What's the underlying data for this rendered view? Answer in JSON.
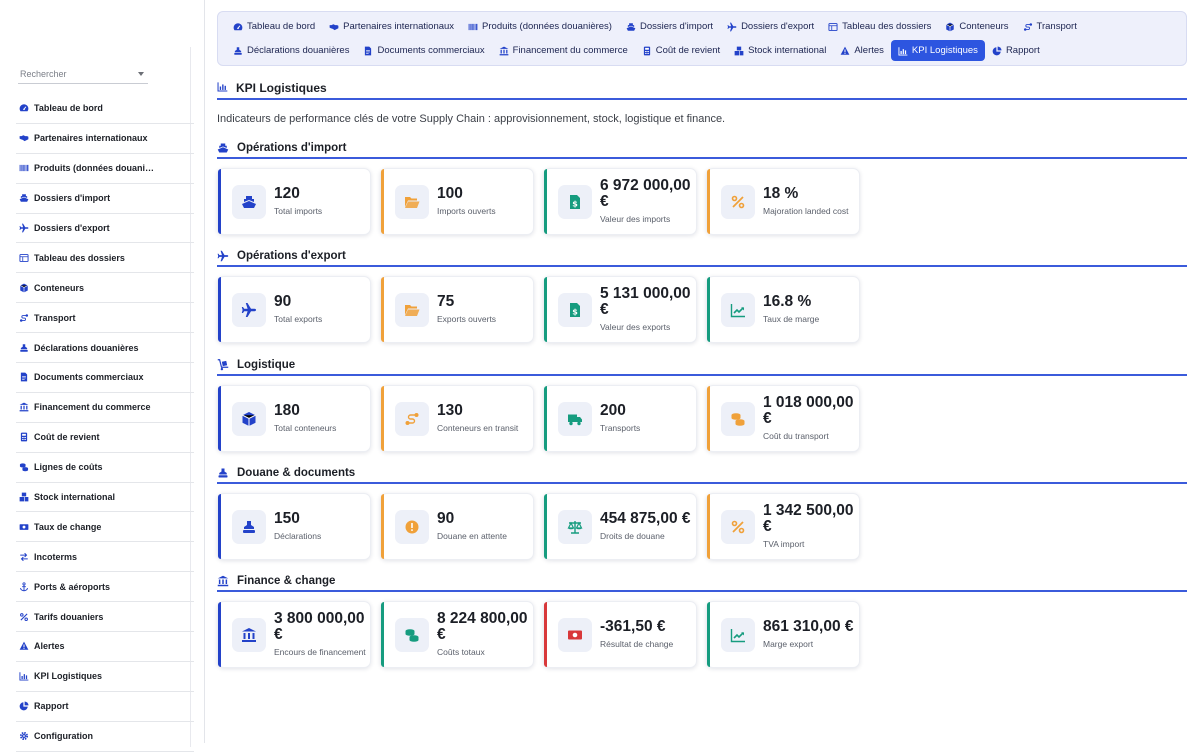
{
  "sidebar": {
    "search_placeholder": "Rechercher",
    "items": [
      {
        "label": "Tableau de bord",
        "icon": "dashboard-icon"
      },
      {
        "label": "Partenaires internationaux",
        "icon": "handshake-icon"
      },
      {
        "label": "Produits (données douani…",
        "icon": "barcode-icon"
      },
      {
        "label": "Dossiers d'import",
        "icon": "ship-icon"
      },
      {
        "label": "Dossiers d'export",
        "icon": "plane-icon"
      },
      {
        "label": "Tableau des dossiers",
        "icon": "table-icon"
      },
      {
        "label": "Conteneurs",
        "icon": "container-icon"
      },
      {
        "label": "Transport",
        "icon": "route-icon"
      },
      {
        "label": "Déclarations douanières",
        "icon": "stamp-icon"
      },
      {
        "label": "Documents commerciaux",
        "icon": "document-icon"
      },
      {
        "label": "Financement du commerce",
        "icon": "bank-icon"
      },
      {
        "label": "Coût de revient",
        "icon": "calculator-icon"
      },
      {
        "label": "Lignes de coûts",
        "icon": "coins-icon"
      },
      {
        "label": "Stock international",
        "icon": "boxes-icon"
      },
      {
        "label": "Taux de change",
        "icon": "money-icon"
      },
      {
        "label": "Incoterms",
        "icon": "exchange-icon"
      },
      {
        "label": "Ports & aéroports",
        "icon": "anchor-icon"
      },
      {
        "label": "Tarifs douaniers",
        "icon": "percent-icon"
      },
      {
        "label": "Alertes",
        "icon": "warning-icon"
      },
      {
        "label": "KPI Logistiques",
        "icon": "chart-icon"
      },
      {
        "label": "Rapport",
        "icon": "pie-icon"
      },
      {
        "label": "Configuration",
        "icon": "gear-icon"
      }
    ]
  },
  "topnav": {
    "row1": [
      {
        "label": "Tableau de bord",
        "icon": "dashboard-icon"
      },
      {
        "label": "Partenaires internationaux",
        "icon": "handshake-icon"
      },
      {
        "label": "Produits (données douanières)",
        "icon": "barcode-icon"
      },
      {
        "label": "Dossiers d'import",
        "icon": "ship-icon"
      },
      {
        "label": "Dossiers d'export",
        "icon": "plane-icon"
      },
      {
        "label": "Tableau des dossiers",
        "icon": "table-icon"
      },
      {
        "label": "Conteneurs",
        "icon": "container-icon"
      },
      {
        "label": "Transport",
        "icon": "route-icon"
      }
    ],
    "row2": [
      {
        "label": "Déclarations douanières",
        "icon": "stamp-icon"
      },
      {
        "label": "Documents commerciaux",
        "icon": "document-icon"
      },
      {
        "label": "Financement du commerce",
        "icon": "bank-icon"
      },
      {
        "label": "Coût de revient",
        "icon": "calculator-icon"
      },
      {
        "label": "Stock international",
        "icon": "boxes-icon"
      },
      {
        "label": "Alertes",
        "icon": "warning-icon"
      },
      {
        "label": "KPI Logistiques",
        "icon": "chart-icon",
        "active": true
      },
      {
        "label": "Rapport",
        "icon": "pie-icon"
      }
    ]
  },
  "page": {
    "title": "KPI Logistiques",
    "intro": "Indicateurs de performance clés de votre Supply Chain : approvisionnement, stock, logistique et finance."
  },
  "colors": {
    "blue": "#2342c9",
    "orange": "#f0a13a",
    "teal": "#169c7f",
    "red": "#d8383a",
    "accent": "#2d55e0"
  },
  "sections": [
    {
      "title": "Opérations d'import",
      "icon": "ship-icon",
      "cards": [
        {
          "value": "120",
          "label": "Total imports",
          "icon": "ship-icon",
          "color": "blue"
        },
        {
          "value": "100",
          "label": "Imports ouverts",
          "icon": "folder-open-icon",
          "color": "orange"
        },
        {
          "value": "6 972 000,00 €",
          "label": "Valeur des imports",
          "icon": "dollar-file-icon",
          "color": "teal"
        },
        {
          "value": "18 %",
          "label": "Majoration landed cost",
          "icon": "percent-icon",
          "color": "orange"
        }
      ]
    },
    {
      "title": "Opérations d'export",
      "icon": "plane-icon",
      "cards": [
        {
          "value": "90",
          "label": "Total exports",
          "icon": "plane-icon",
          "color": "blue"
        },
        {
          "value": "75",
          "label": "Exports ouverts",
          "icon": "folder-open-icon",
          "color": "orange"
        },
        {
          "value": "5 131 000,00 €",
          "label": "Valeur des exports",
          "icon": "dollar-file-icon",
          "color": "teal"
        },
        {
          "value": "16.8 %",
          "label": "Taux de marge",
          "icon": "trend-up-icon",
          "color": "teal"
        }
      ]
    },
    {
      "title": "Logistique",
      "icon": "dolly-icon",
      "cards": [
        {
          "value": "180",
          "label": "Total conteneurs",
          "icon": "cube-icon",
          "color": "blue"
        },
        {
          "value": "130",
          "label": "Conteneurs en transit",
          "icon": "route-icon",
          "color": "orange"
        },
        {
          "value": "200",
          "label": "Transports",
          "icon": "truck-icon",
          "color": "teal"
        },
        {
          "value": "1 018 000,00 €",
          "label": "Coût du transport",
          "icon": "coins-icon",
          "color": "orange"
        }
      ]
    },
    {
      "title": "Douane & documents",
      "icon": "stamp-icon",
      "cards": [
        {
          "value": "150",
          "label": "Déclarations",
          "icon": "stamp-icon",
          "color": "blue"
        },
        {
          "value": "90",
          "label": "Douane en attente",
          "icon": "exclamation-icon",
          "color": "orange"
        },
        {
          "value": "454 875,00 €",
          "label": "Droits de douane",
          "icon": "scale-icon",
          "color": "teal"
        },
        {
          "value": "1 342 500,00 €",
          "label": "TVA import",
          "icon": "percent-icon",
          "color": "orange"
        }
      ]
    },
    {
      "title": "Finance & change",
      "icon": "bank-icon",
      "cards": [
        {
          "value": "3 800 000,00 €",
          "label": "Encours de financement",
          "icon": "bank-icon",
          "color": "blue"
        },
        {
          "value": "8 224 800,00 €",
          "label": "Coûts totaux",
          "icon": "coins-icon",
          "color": "teal"
        },
        {
          "value": "-361,50 €",
          "label": "Résultat de change",
          "icon": "money-icon",
          "color": "red"
        },
        {
          "value": "861 310,00 €",
          "label": "Marge export",
          "icon": "trend-up-icon",
          "color": "teal"
        }
      ]
    }
  ]
}
